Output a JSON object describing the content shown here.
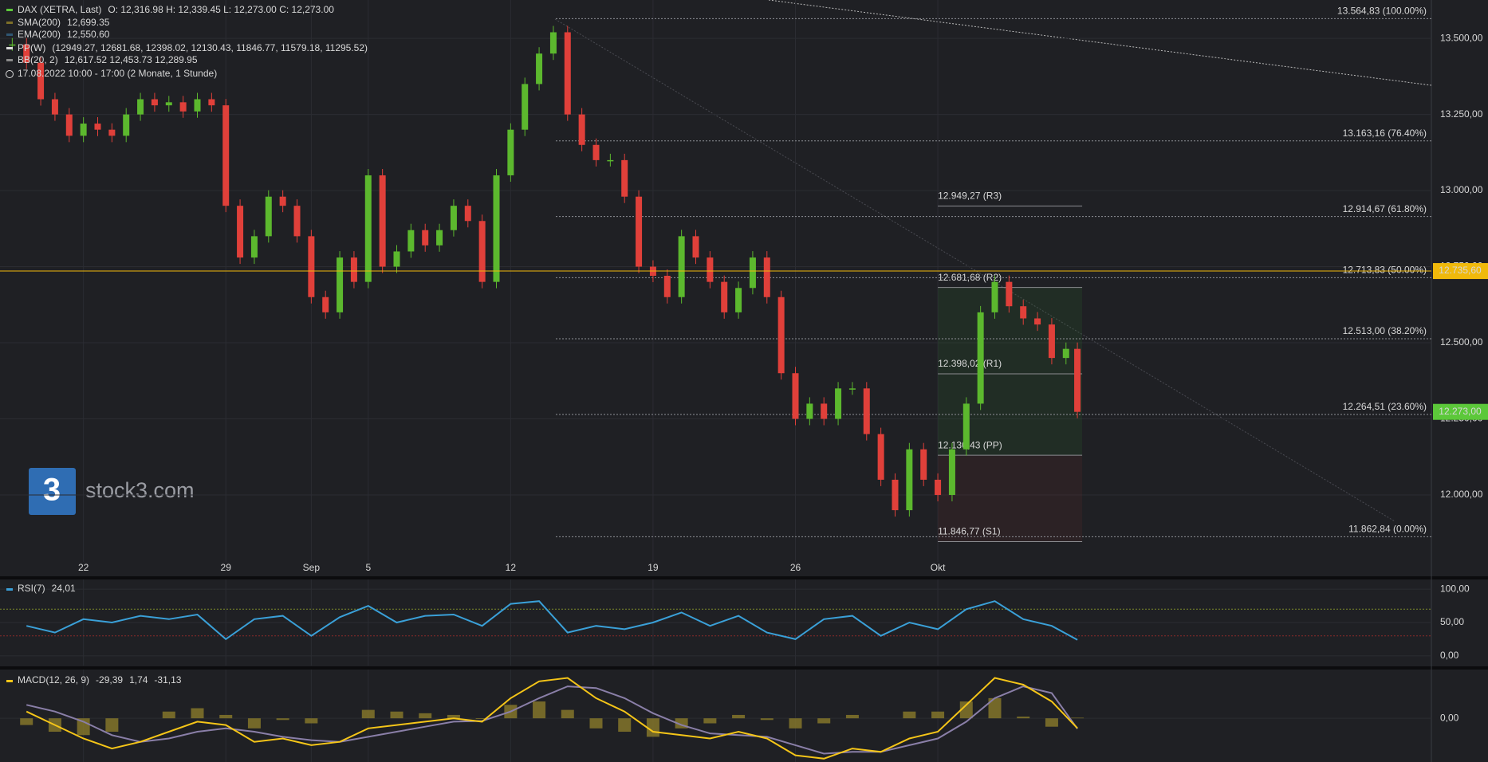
{
  "chart_data": [
    {
      "type": "candlestick",
      "legend": [
        {
          "name": "DAX (XETRA, Last)",
          "text": "O: 12,316.98   H: 12,339.45   L: 12,273.00   C: 12,273.00",
          "color": "#5cc83a"
        },
        {
          "name": "SMA(200)",
          "text": "12,699.35",
          "color": "#7d6f28"
        },
        {
          "name": "EMA(200)",
          "text": "12,550.60",
          "color": "#2f5673"
        },
        {
          "name": "PP(W)",
          "text": "(12949.27, 12681.68, 12398.02, 12130.43, 11846.77, 11579.18, 11295.52)",
          "color": "#dddddd"
        },
        {
          "name": "BB(20, 2)",
          "text": "12,617.52   12,453.73   12,289.95",
          "color": "#8a8a8a"
        }
      ],
      "period": "17.08.2022 10:00 - 17:00   (2 Monate, 1 Stunde)",
      "branding": "stock3.com",
      "up_color": "#5cb82e",
      "down_color": "#e0403a",
      "x": [
        -2.5,
        -2,
        -1.5,
        -1,
        -0.5,
        0,
        0.5,
        1,
        1.5,
        2,
        2.5,
        3,
        3.5,
        4,
        4.5,
        5,
        5.5,
        6,
        6.5,
        7,
        7.5,
        8,
        8.5,
        9,
        9.5,
        10,
        10.5,
        11,
        11.5,
        12,
        12.5,
        13,
        13.5,
        14,
        14.5,
        15,
        15.5,
        16,
        16.5,
        17,
        17.5,
        18,
        18.5,
        19,
        19.5,
        20,
        20.5,
        21,
        21.5,
        22,
        22.5,
        23,
        23.5,
        24,
        24.5,
        25,
        25.5,
        26,
        26.5,
        27,
        27.5,
        28,
        28.5,
        29,
        29.5,
        30,
        30.5,
        31,
        31.5,
        32,
        32.5,
        33,
        33.5,
        34,
        34.5,
        34.9
      ],
      "close": [
        13480,
        13420,
        13300,
        13250,
        13180,
        13220,
        13200,
        13180,
        13250,
        13300,
        13280,
        13290,
        13260,
        13300,
        13280,
        12950,
        12780,
        12850,
        12980,
        12950,
        12850,
        12650,
        12600,
        12780,
        12700,
        13050,
        12750,
        12800,
        12870,
        12820,
        12870,
        12950,
        12900,
        12700,
        13050,
        13200,
        13350,
        13450,
        13520,
        13250,
        13150,
        13100,
        13100,
        12980,
        12750,
        12720,
        12650,
        12850,
        12780,
        12700,
        12600,
        12680,
        12780,
        12650,
        12400,
        12250,
        12300,
        12250,
        12350,
        12350,
        12200,
        12050,
        11950,
        12150,
        12050,
        12000,
        12150,
        12300,
        12600,
        12700,
        12620,
        12580,
        12560,
        12450,
        12480,
        12273
      ],
      "xlim": [
        -2.93,
        47.33
      ],
      "xticks": [
        {
          "value": 0,
          "label": "22"
        },
        {
          "value": 5,
          "label": "29"
        },
        {
          "value": 8,
          "label": "Sep"
        },
        {
          "value": 10,
          "label": "5"
        },
        {
          "value": 15,
          "label": "12"
        },
        {
          "value": 20,
          "label": "19"
        },
        {
          "value": 25,
          "label": "26"
        },
        {
          "value": 30,
          "label": "Okt"
        }
      ],
      "ylim": [
        11780,
        13626
      ],
      "yticks": [
        {
          "value": 12000,
          "label": "12.000,00"
        },
        {
          "value": 12250,
          "label": "12.250,00"
        },
        {
          "value": 12500,
          "label": "12.500,00"
        },
        {
          "value": 12750,
          "label": "12.750,00"
        },
        {
          "value": 13000,
          "label": "13.000,00"
        },
        {
          "value": 13250,
          "label": "13.250,00"
        },
        {
          "value": 13500,
          "label": "13.500,00"
        }
      ],
      "levels": [
        {
          "value": 13564.83,
          "label": "13.564,83 (100.00%)"
        },
        {
          "value": 13163.16,
          "label": "13.163,16 (76.40%)"
        },
        {
          "value": 12914.67,
          "label": "12.914,67 (61.80%)"
        },
        {
          "value": 12713.83,
          "label": "12.713,83 (50.00%)"
        },
        {
          "value": 12513.0,
          "label": "12.513,00 (38.20%)"
        },
        {
          "value": 12264.51,
          "label": "12.264,51 (23.60%)"
        },
        {
          "value": 11862.84,
          "label": "11.862,84 (0.00%)"
        }
      ],
      "pivots": [
        {
          "value": 12949.27,
          "label": "12.949,27 (R3)"
        },
        {
          "value": 12681.68,
          "label": "12.681,68 (R2)"
        },
        {
          "value": 12398.02,
          "label": "12.398,02 (R1)"
        },
        {
          "value": 12130.43,
          "label": "12.130,43 (PP)"
        },
        {
          "value": 11846.77,
          "label": "11.846,77 (S1)"
        }
      ],
      "price_tags": [
        {
          "value": 12735.6,
          "label": "12.735,60",
          "color": "#f0b90b"
        },
        {
          "value": 12273.0,
          "label": "12.273,00",
          "color": "#5cc83a"
        }
      ]
    },
    {
      "type": "line",
      "title": "RSI(7)",
      "value_text": "24,01",
      "color": "#3aa0d8",
      "x": [
        -2,
        -1,
        0,
        1,
        2,
        3,
        4,
        5,
        6,
        7,
        8,
        9,
        10,
        11,
        12,
        13,
        14,
        15,
        16,
        17,
        18,
        19,
        20,
        21,
        22,
        23,
        24,
        25,
        26,
        27,
        28,
        29,
        30,
        31,
        32,
        33,
        34,
        34.9
      ],
      "values": [
        45,
        35,
        55,
        50,
        60,
        55,
        62,
        25,
        55,
        60,
        30,
        58,
        75,
        50,
        60,
        62,
        45,
        78,
        82,
        35,
        45,
        40,
        50,
        65,
        45,
        60,
        35,
        25,
        55,
        60,
        30,
        50,
        40,
        70,
        82,
        55,
        45,
        24.01
      ],
      "levels": [
        30,
        70
      ],
      "ylim": [
        -14.5,
        114.5
      ],
      "yticks": [
        {
          "value": 0,
          "label": "0,00"
        },
        {
          "value": 50,
          "label": "50,00"
        },
        {
          "value": 100,
          "label": "100,00"
        }
      ]
    },
    {
      "type": "macd",
      "title": "MACD(12, 26, 9)",
      "value_texts": [
        "-29,39",
        "1,74",
        "-31,13"
      ],
      "colors": {
        "macd": "#f5c518",
        "signal": "#8a7fa8",
        "histogram": "#8a7a2a"
      },
      "x": [
        -2,
        -1,
        0,
        1,
        2,
        3,
        4,
        5,
        6,
        7,
        8,
        9,
        10,
        11,
        12,
        13,
        14,
        15,
        16,
        17,
        18,
        19,
        20,
        21,
        22,
        23,
        24,
        25,
        26,
        27,
        28,
        29,
        30,
        31,
        32,
        33,
        34,
        34.9
      ],
      "macd": [
        20,
        -20,
        -60,
        -90,
        -70,
        -40,
        -10,
        -20,
        -70,
        -60,
        -80,
        -70,
        -30,
        -20,
        -10,
        0,
        -10,
        60,
        110,
        120,
        60,
        20,
        -40,
        -50,
        -60,
        -40,
        -60,
        -110,
        -120,
        -90,
        -100,
        -60,
        -40,
        40,
        120,
        100,
        50,
        -29.39
      ],
      "signal": [
        40,
        20,
        -10,
        -50,
        -70,
        -60,
        -40,
        -30,
        -40,
        -55,
        -65,
        -70,
        -55,
        -40,
        -25,
        -10,
        -8,
        20,
        60,
        95,
        90,
        60,
        15,
        -20,
        -45,
        -50,
        -55,
        -80,
        -105,
        -100,
        -100,
        -80,
        -60,
        -10,
        60,
        95,
        75,
        -31.13
      ],
      "histogram": [
        -20,
        -40,
        -50,
        -40,
        0,
        20,
        30,
        10,
        -30,
        -5,
        -15,
        0,
        25,
        20,
        15,
        10,
        -2,
        40,
        50,
        25,
        -30,
        -40,
        -55,
        -30,
        -15,
        10,
        -5,
        -30,
        -15,
        10,
        0,
        20,
        20,
        50,
        60,
        5,
        -25,
        1.74
      ],
      "ylim": [
        -130,
        145
      ],
      "yticks": [
        {
          "value": 0,
          "label": "0,00"
        }
      ]
    }
  ]
}
